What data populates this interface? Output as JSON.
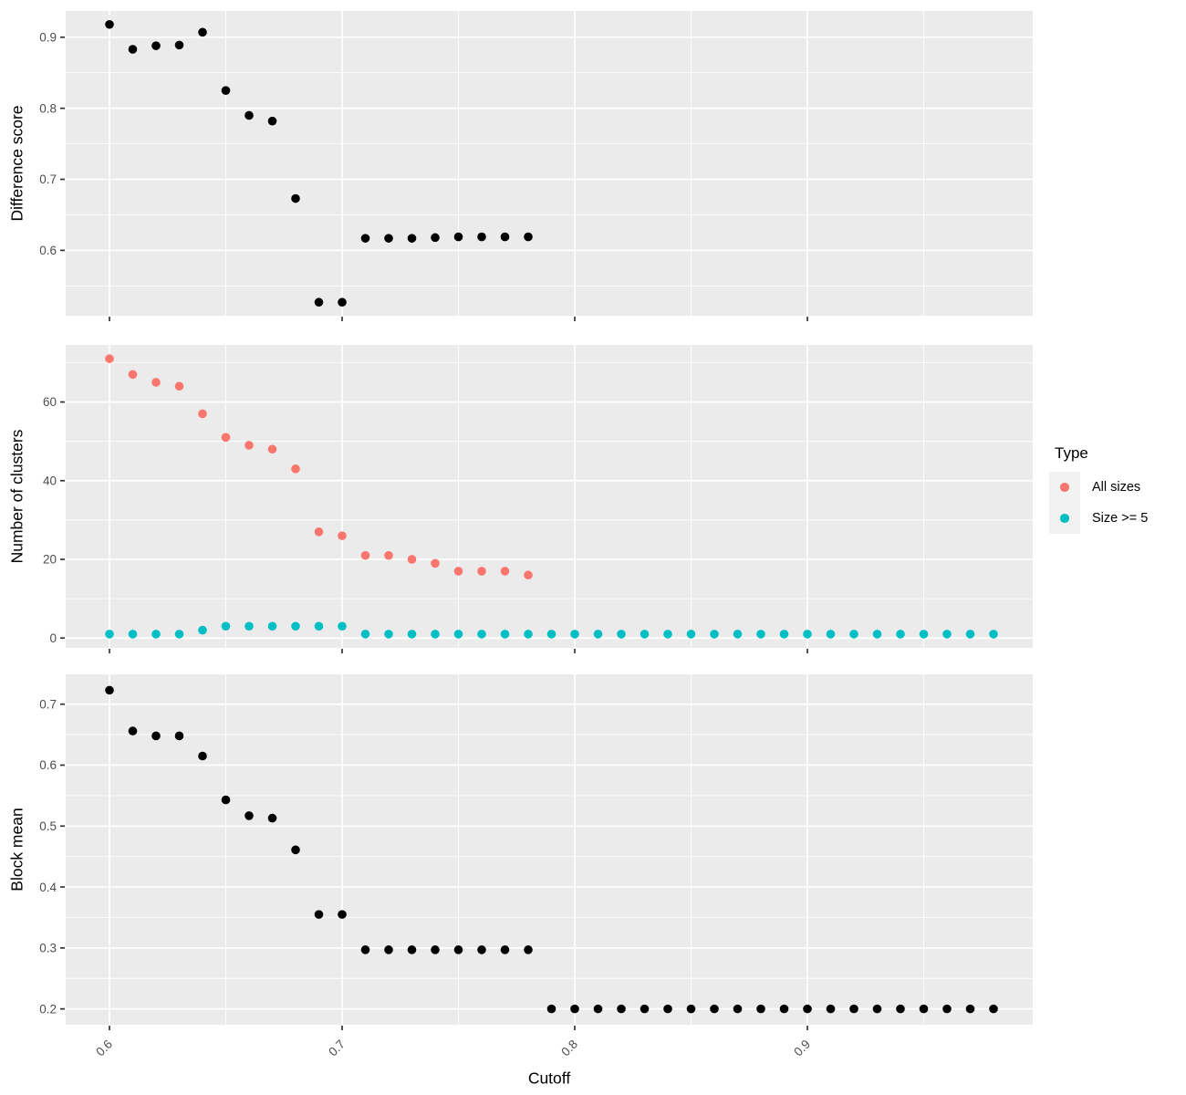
{
  "figure": {
    "background": "#FFFFFF",
    "panel_background": "#EBEBEB",
    "grid_color": "#FFFFFF",
    "tick_mark_color": "#333333",
    "tick_label_color": "#4D4D4D",
    "axis_title_color": "#000000"
  },
  "x_axis": {
    "title": "Cutoff",
    "tick_labels": [
      "0.6",
      "0.7",
      "0.8",
      "0.9"
    ],
    "ticks": [
      0.6,
      0.7,
      0.8,
      0.9
    ],
    "minor_ticks": [
      0.65,
      0.75,
      0.85,
      0.95
    ],
    "range": [
      0.581,
      0.997
    ]
  },
  "legend": {
    "title": "Type",
    "key_background": "#F2F2F2",
    "items": [
      {
        "label": "All sizes",
        "color": "#F8766D"
      },
      {
        "label": "Size >= 5",
        "color": "#00BFC4"
      }
    ]
  },
  "chart_data": [
    {
      "type": "scatter",
      "panel": "difference-score",
      "ylabel": "Difference score",
      "ylim": [
        0.508,
        0.937
      ],
      "yticks": [
        0.6,
        0.7,
        0.8,
        0.9
      ],
      "ytick_labels": [
        "0.6",
        "0.7",
        "0.8",
        "0.9"
      ],
      "yminor": [
        0.55,
        0.65,
        0.75,
        0.85
      ],
      "series": [
        {
          "name": "Difference score",
          "color": "#000000",
          "x": [
            0.6,
            0.61,
            0.62,
            0.63,
            0.64,
            0.65,
            0.66,
            0.67,
            0.68,
            0.69,
            0.7,
            0.71,
            0.72,
            0.73,
            0.74,
            0.75,
            0.76,
            0.77,
            0.78
          ],
          "y": [
            0.918,
            0.883,
            0.888,
            0.889,
            0.907,
            0.825,
            0.79,
            0.782,
            0.673,
            0.527,
            0.527,
            0.617,
            0.617,
            0.617,
            0.618,
            0.619,
            0.619,
            0.619,
            0.619
          ]
        }
      ]
    },
    {
      "type": "scatter",
      "panel": "number-of-clusters",
      "ylabel": "Number of clusters",
      "ylim": [
        -2.5,
        74.5
      ],
      "yticks": [
        0,
        20,
        40,
        60
      ],
      "ytick_labels": [
        "0",
        "20",
        "40",
        "60"
      ],
      "yminor": [
        10,
        30,
        50,
        70
      ],
      "series": [
        {
          "name": "All sizes",
          "color": "#F8766D",
          "x": [
            0.6,
            0.61,
            0.62,
            0.63,
            0.64,
            0.65,
            0.66,
            0.67,
            0.68,
            0.69,
            0.7,
            0.71,
            0.72,
            0.73,
            0.74,
            0.75,
            0.76,
            0.77,
            0.78
          ],
          "y": [
            71,
            67,
            65,
            64,
            57,
            51,
            49,
            48,
            43,
            27,
            26,
            21,
            21,
            20,
            19,
            17,
            17,
            17,
            16
          ]
        },
        {
          "name": "Size >= 5",
          "color": "#00BFC4",
          "x": [
            0.6,
            0.61,
            0.62,
            0.63,
            0.64,
            0.65,
            0.66,
            0.67,
            0.68,
            0.69,
            0.7,
            0.71,
            0.72,
            0.73,
            0.74,
            0.75,
            0.76,
            0.77,
            0.78,
            0.79,
            0.8,
            0.81,
            0.82,
            0.83,
            0.84,
            0.85,
            0.86,
            0.87,
            0.88,
            0.89,
            0.9,
            0.91,
            0.92,
            0.93,
            0.94,
            0.95,
            0.96,
            0.97,
            0.98
          ],
          "y": [
            1,
            1,
            1,
            1,
            2,
            3,
            3,
            3,
            3,
            3,
            3,
            1,
            1,
            1,
            1,
            1,
            1,
            1,
            1,
            1,
            1,
            1,
            1,
            1,
            1,
            1,
            1,
            1,
            1,
            1,
            1,
            1,
            1,
            1,
            1,
            1,
            1,
            1,
            1
          ]
        }
      ]
    },
    {
      "type": "scatter",
      "panel": "block-mean",
      "ylabel": "Block mean",
      "ylim": [
        0.174,
        0.749
      ],
      "yticks": [
        0.2,
        0.3,
        0.4,
        0.5,
        0.6,
        0.7
      ],
      "ytick_labels": [
        "0.2",
        "0.3",
        "0.4",
        "0.5",
        "0.6",
        "0.7"
      ],
      "yminor": [
        0.25,
        0.35,
        0.45,
        0.55,
        0.65
      ],
      "series": [
        {
          "name": "Block mean",
          "color": "#000000",
          "x": [
            0.6,
            0.61,
            0.62,
            0.63,
            0.64,
            0.65,
            0.66,
            0.67,
            0.68,
            0.69,
            0.7,
            0.71,
            0.72,
            0.73,
            0.74,
            0.75,
            0.76,
            0.77,
            0.78,
            0.79,
            0.8,
            0.81,
            0.82,
            0.83,
            0.84,
            0.85,
            0.86,
            0.87,
            0.88,
            0.89,
            0.9,
            0.91,
            0.92,
            0.93,
            0.94,
            0.95,
            0.96,
            0.97,
            0.98
          ],
          "y": [
            0.723,
            0.656,
            0.648,
            0.648,
            0.615,
            0.543,
            0.517,
            0.513,
            0.461,
            0.355,
            0.355,
            0.297,
            0.297,
            0.297,
            0.297,
            0.297,
            0.297,
            0.297,
            0.297,
            0.2,
            0.2,
            0.2,
            0.2,
            0.2,
            0.2,
            0.2,
            0.2,
            0.2,
            0.2,
            0.2,
            0.2,
            0.2,
            0.2,
            0.2,
            0.2,
            0.2,
            0.2,
            0.2,
            0.2
          ]
        }
      ]
    }
  ]
}
